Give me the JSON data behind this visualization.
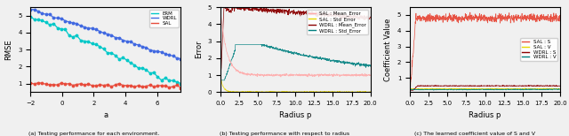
{
  "fig_width": 6.4,
  "fig_height": 1.54,
  "dpi": 100,
  "subplot1": {
    "xlabel": "a",
    "ylabel": "RMSE",
    "caption": "(a) Testing performance for each environment.",
    "xlim": [
      -2.0,
      7.5
    ],
    "ylim": [
      0.5,
      5.5
    ],
    "xticks": [
      -2.0,
      -1.5,
      -1.0,
      -0.5,
      0.0,
      0.5,
      1.0,
      1.5,
      7.5
    ],
    "erm_color": "#00c8c8",
    "wdrl_color": "#4169e1",
    "sal_color": "#e74c3c"
  },
  "subplot2": {
    "xlabel": "Radius p",
    "ylabel": "Error",
    "caption": "(b) Testing performance with respect to radius",
    "xlim": [
      0.0,
      20.0
    ],
    "ylim": [
      0.0,
      5.0
    ],
    "sal_mean_color": "#ffaaaa",
    "sal_std_color": "#e8d800",
    "wdrl_mean_color": "#8b0000",
    "wdrl_std_color": "#008080"
  },
  "subplot3": {
    "xlabel": "Radius p",
    "ylabel": "Coefficient Value",
    "caption": "(c) The learned coefficient value of S and V",
    "xlim": [
      0.0,
      20.0
    ],
    "ylim": [
      0.1,
      5.5
    ],
    "sal_s_color": "#e74c3c",
    "sal_v_color": "#e8d800",
    "wdrl_s_color": "#8b0000",
    "wdrl_v_color": "#008080"
  },
  "bg_color": "#f0f0f0"
}
